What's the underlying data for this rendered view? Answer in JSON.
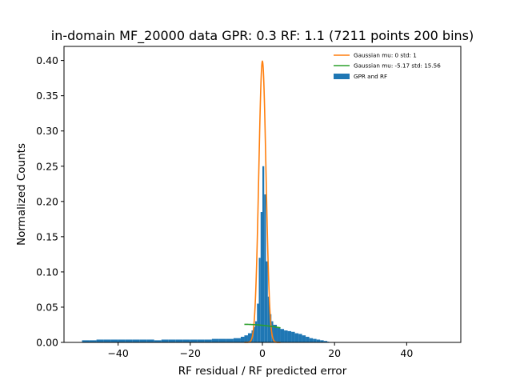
{
  "chart_data": {
    "type": "bar",
    "title": "in-domain MF_20000 data GPR: 0.3 RF: 1.1 (7211 points 200 bins)",
    "xlabel": "RF residual / RF predicted error",
    "ylabel": "Normalized Counts",
    "xlim": [
      -55,
      55
    ],
    "ylim": [
      0,
      0.42
    ],
    "xticks": [
      -40,
      -20,
      0,
      20,
      40
    ],
    "yticks": [
      0.0,
      0.05,
      0.1,
      0.15,
      0.2,
      0.25,
      0.3,
      0.35,
      0.4
    ],
    "grid": false,
    "legend_position": "top-right",
    "histogram": {
      "name": "GPR and RF",
      "color": "#1f77b4",
      "bin_range": [
        -50,
        50
      ],
      "bin_count": 200,
      "bin_width": 0.5,
      "bins": [
        [
          -50.0,
          0.003
        ],
        [
          -48.0,
          0.003
        ],
        [
          -46.0,
          0.004
        ],
        [
          -44.0,
          0.004
        ],
        [
          -42.0,
          0.004
        ],
        [
          -40.0,
          0.004
        ],
        [
          -38.0,
          0.004
        ],
        [
          -36.0,
          0.004
        ],
        [
          -34.0,
          0.004
        ],
        [
          -32.0,
          0.004
        ],
        [
          -30.0,
          0.003
        ],
        [
          -28.0,
          0.004
        ],
        [
          -26.0,
          0.004
        ],
        [
          -24.0,
          0.004
        ],
        [
          -22.0,
          0.004
        ],
        [
          -20.0,
          0.004
        ],
        [
          -18.0,
          0.004
        ],
        [
          -16.0,
          0.004
        ],
        [
          -14.0,
          0.005
        ],
        [
          -12.0,
          0.005
        ],
        [
          -10.0,
          0.005
        ],
        [
          -8.0,
          0.006
        ],
        [
          -6.0,
          0.008
        ],
        [
          -5.0,
          0.01
        ],
        [
          -4.0,
          0.013
        ],
        [
          -3.0,
          0.017
        ],
        [
          -2.5,
          0.022
        ],
        [
          -2.0,
          0.03
        ],
        [
          -1.5,
          0.055
        ],
        [
          -1.0,
          0.12
        ],
        [
          -0.5,
          0.185
        ],
        [
          0.0,
          0.25
        ],
        [
          0.5,
          0.21
        ],
        [
          1.0,
          0.115
        ],
        [
          1.5,
          0.065
        ],
        [
          2.0,
          0.04
        ],
        [
          2.5,
          0.03
        ],
        [
          3.0,
          0.025
        ],
        [
          4.0,
          0.021
        ],
        [
          5.0,
          0.019
        ],
        [
          6.0,
          0.017
        ],
        [
          7.0,
          0.016
        ],
        [
          8.0,
          0.015
        ],
        [
          9.0,
          0.013
        ],
        [
          10.0,
          0.012
        ],
        [
          11.0,
          0.01
        ],
        [
          12.0,
          0.008
        ],
        [
          13.0,
          0.006
        ],
        [
          14.0,
          0.005
        ],
        [
          15.0,
          0.004
        ],
        [
          16.0,
          0.003
        ],
        [
          17.0,
          0.002
        ],
        [
          18.0,
          0.001
        ]
      ]
    },
    "series": [
      {
        "name": "Gaussian mu: 0 std: 1",
        "type": "gaussian",
        "mu": 0,
        "std": 1,
        "color": "#ff7f0e",
        "x_range": [
          -5,
          5
        ]
      },
      {
        "name": "Gaussian mu: -5.17 std: 15.56",
        "type": "gaussian",
        "mu": -5.17,
        "std": 15.56,
        "color": "#2ca02c",
        "x_range": [
          -5,
          5
        ]
      }
    ]
  }
}
